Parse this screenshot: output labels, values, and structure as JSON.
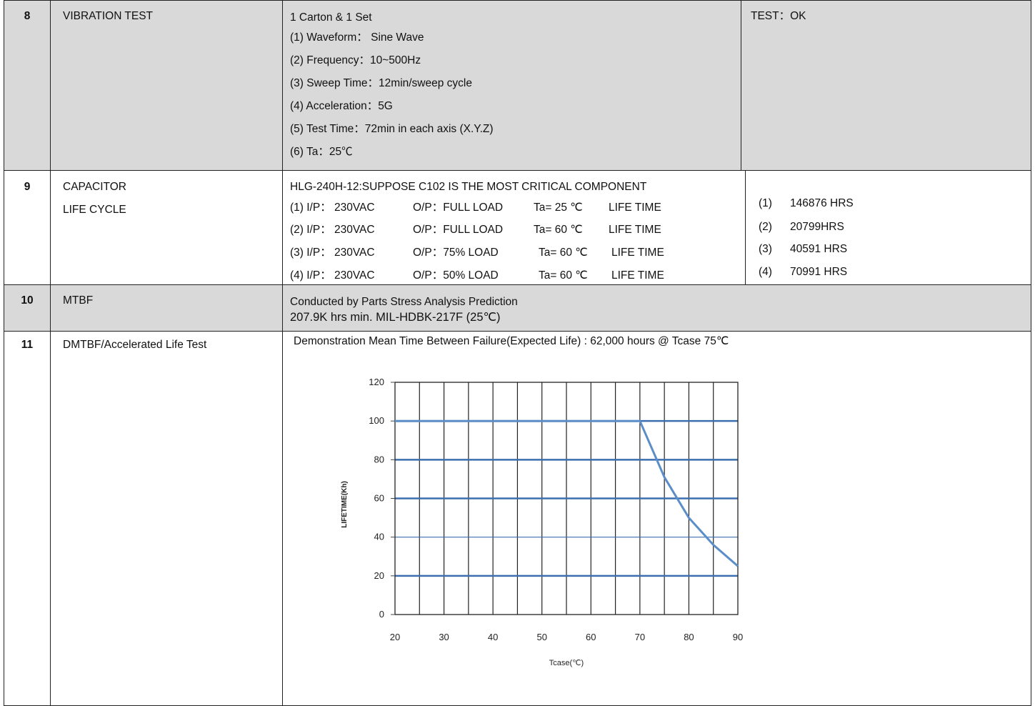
{
  "rows": {
    "vibration": {
      "number": "8",
      "item": "VIBRATION TEST",
      "lines": [
        "1 Carton & 1 Set",
        "(1) Waveform：  Sine Wave",
        "(2) Frequency：10~500Hz",
        "(3) Sweep Time：12min/sweep cycle",
        "(4) Acceleration：5G",
        "(5) Test Time：72min in each axis (X.Y.Z)",
        "(6) Ta：25℃"
      ],
      "result": "TEST：OK"
    },
    "capacitor": {
      "number": "9",
      "item_line1": "CAPACITOR",
      "item_line2": "LIFE CYCLE",
      "header": "HLG-240H-12:SUPPOSE    C102    IS THE MOST CRITICAL COMPONENT",
      "conditions": [
        {
          "ip": "(1) I/P：  230VAC",
          "op": "O/P：FULL LOAD",
          "ta": "Ta= 25 ℃",
          "lt": "LIFE TIME"
        },
        {
          "ip": "(2) I/P：  230VAC",
          "op": "O/P：FULL LOAD",
          "ta": "Ta= 60 ℃",
          "lt": "LIFE TIME"
        },
        {
          "ip": "(3) I/P：  230VAC",
          "op": "O/P：75% LOAD",
          "ta": "Ta= 60 ℃",
          "lt": "LIFE TIME"
        },
        {
          "ip": "(4) I/P：  230VAC",
          "op": "O/P：50% LOAD",
          "ta": "Ta= 60 ℃",
          "lt": "LIFE TIME"
        }
      ],
      "results": [
        {
          "idx": "(1)",
          "value": "146876 HRS"
        },
        {
          "idx": "(2)",
          "value": "20799HRS"
        },
        {
          "idx": "(3)",
          "value": "40591 HRS"
        },
        {
          "idx": "(4)",
          "value": "70991 HRS"
        }
      ]
    },
    "mtbf": {
      "number": "10",
      "item": "MTBF",
      "line1": "Conducted by Parts Stress Analysis Prediction",
      "line2": "207.9K    hrs min. MIL-HDBK-217F (25℃)"
    },
    "dmtbf": {
      "number": "11",
      "item": "DMTBF/Accelerated Life Test",
      "description": "Demonstration Mean Time Between Failure(Expected Life) : 62,000 hours @ Tcase 75℃"
    }
  },
  "chart_data": {
    "type": "line",
    "title": "",
    "xlabel": "Tcase(℃)",
    "ylabel": "LIFETIME(Kh)",
    "xlim": [
      20,
      90
    ],
    "ylim": [
      0,
      120
    ],
    "xticks": [
      "20",
      "30",
      "40",
      "50",
      "60",
      "70",
      "80",
      "90"
    ],
    "yticks": [
      "0",
      "20",
      "40",
      "60",
      "80",
      "100",
      "120"
    ],
    "grid": true,
    "series": [
      {
        "x": [
          20,
          70,
          75,
          80,
          85,
          90
        ],
        "y": [
          100,
          100,
          71,
          50,
          36,
          25
        ]
      }
    ],
    "colors": {
      "line": "#5b8ec9",
      "major_grid": "#3d6fb0",
      "grid": "#222222"
    }
  }
}
